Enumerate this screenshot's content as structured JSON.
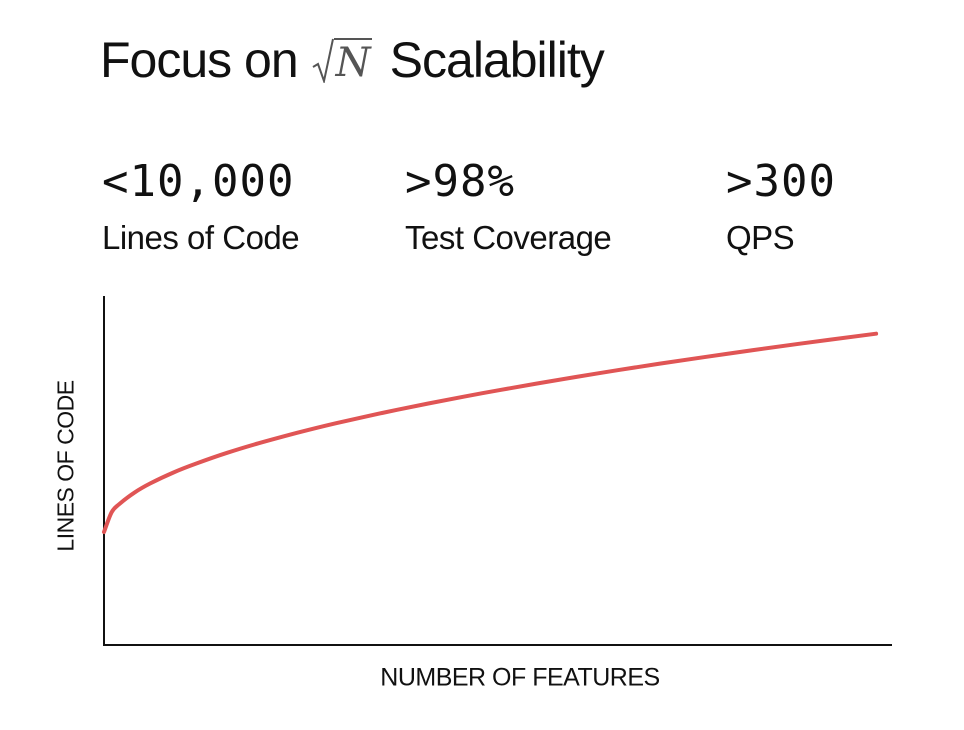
{
  "title": {
    "prefix": "Focus on",
    "symbol": "N",
    "suffix": "Scalability"
  },
  "stats": [
    {
      "value": "<10,000",
      "label": "Lines of Code"
    },
    {
      "value": ">98%",
      "label": "Test Coverage"
    },
    {
      "value": ">300",
      "label": "QPS"
    }
  ],
  "chart_data": {
    "type": "line",
    "xlabel": "NUMBER OF FEATURES",
    "ylabel": "LINES OF CODE",
    "ticks_shown": false,
    "grid": false,
    "legend": "none",
    "series": [
      {
        "color": "#e05555",
        "x": [
          0,
          1,
          2,
          4,
          6,
          9,
          12,
          16,
          20,
          25,
          30,
          36,
          42,
          49,
          56,
          64,
          72,
          81,
          90,
          100
        ],
        "y": [
          0.0,
          1.0,
          1.41,
          2.0,
          2.45,
          3.0,
          3.46,
          4.0,
          4.47,
          5.0,
          5.48,
          6.0,
          6.48,
          7.0,
          7.48,
          8.0,
          8.49,
          9.0,
          9.49,
          10.0
        ]
      }
    ],
    "xlim": [
      0,
      104
    ],
    "ylim": [
      -5.7,
      11.9
    ]
  },
  "colors": {
    "curve": "#e05555",
    "axis": "#111111",
    "text": "#111111"
  }
}
